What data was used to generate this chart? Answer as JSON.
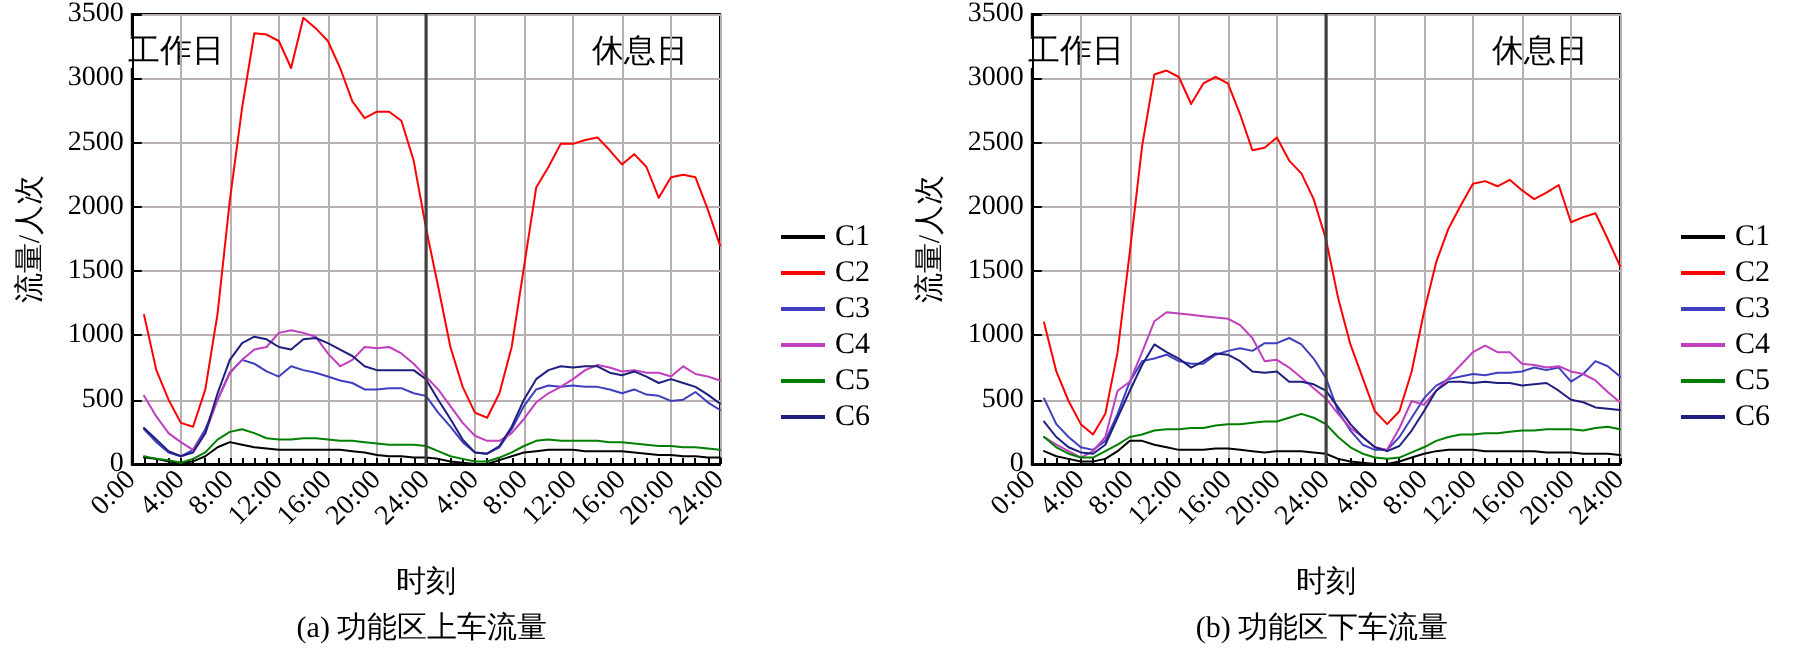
{
  "chart_data": [
    {
      "type": "line",
      "title": "(a) 功能区上车流量",
      "xlabel": "时刻",
      "ylabel": "流量/人次",
      "annotations": [
        "工作日",
        "休息日"
      ],
      "categories": [
        "0:00",
        null,
        null,
        null,
        "4:00",
        null,
        null,
        null,
        "8:00",
        null,
        null,
        null,
        "12:00",
        null,
        null,
        null,
        "16:00",
        null,
        null,
        null,
        "20:00",
        null,
        null,
        null,
        "24:00",
        null,
        null,
        null,
        "4:00",
        null,
        null,
        null,
        "8:00",
        null,
        null,
        null,
        "12:00",
        null,
        null,
        null,
        "16:00",
        null,
        null,
        null,
        "20:00",
        null,
        null,
        null,
        "24:00"
      ],
      "ylim": [
        0,
        3500
      ],
      "yticks": [
        0,
        500,
        1000,
        1500,
        2000,
        2500,
        3000,
        3500
      ],
      "grid": true,
      "legend": "right",
      "line_style": "solid",
      "ref_lines": [
        {
          "axis": "x",
          "value": "24:00",
          "label": null,
          "color": "#404040"
        }
      ],
      "series": [
        {
          "name": "C1",
          "color": "#000000",
          "values": [
            null,
            50,
            40,
            20,
            10,
            20,
            60,
            130,
            170,
            150,
            130,
            120,
            110,
            110,
            110,
            110,
            110,
            110,
            100,
            90,
            70,
            60,
            60,
            50,
            50,
            40,
            20,
            10,
            0,
            0,
            30,
            60,
            90,
            100,
            110,
            110,
            110,
            100,
            100,
            100,
            100,
            90,
            80,
            70,
            70,
            60,
            60,
            50,
            50
          ]
        },
        {
          "name": "C2",
          "color": "#ff0000",
          "values": [
            null,
            1160,
            730,
            500,
            320,
            290,
            580,
            1170,
            2050,
            2770,
            3350,
            3340,
            3290,
            3080,
            3470,
            3390,
            3290,
            3080,
            2820,
            2690,
            2740,
            2740,
            2670,
            2360,
            1840,
            1380,
            910,
            600,
            400,
            360,
            550,
            910,
            1530,
            2150,
            2310,
            2490,
            2490,
            2520,
            2540,
            2440,
            2330,
            2410,
            2310,
            2070,
            2230,
            2250,
            2230,
            1980,
            1700
          ]
        },
        {
          "name": "C3",
          "color": "#3f3fbf",
          "values": [
            null,
            270,
            170,
            90,
            60,
            110,
            270,
            500,
            710,
            810,
            780,
            720,
            680,
            760,
            730,
            710,
            680,
            650,
            630,
            580,
            580,
            590,
            590,
            550,
            530,
            400,
            290,
            170,
            90,
            80,
            130,
            270,
            450,
            580,
            610,
            600,
            610,
            600,
            600,
            580,
            550,
            580,
            540,
            530,
            490,
            500,
            560,
            480,
            420
          ]
        },
        {
          "name": "C4",
          "color": "#bf3fbf",
          "values": [
            null,
            530,
            370,
            240,
            170,
            110,
            240,
            500,
            710,
            810,
            890,
            910,
            1020,
            1040,
            1020,
            990,
            860,
            760,
            810,
            910,
            900,
            910,
            860,
            780,
            680,
            580,
            450,
            320,
            220,
            180,
            180,
            240,
            350,
            480,
            550,
            600,
            660,
            730,
            770,
            750,
            720,
            730,
            710,
            710,
            680,
            760,
            700,
            680,
            650
          ]
        },
        {
          "name": "C5",
          "color": "#007f00",
          "values": [
            null,
            60,
            40,
            30,
            10,
            40,
            90,
            190,
            250,
            270,
            240,
            200,
            190,
            190,
            200,
            200,
            190,
            180,
            180,
            170,
            160,
            150,
            150,
            150,
            140,
            100,
            60,
            40,
            20,
            20,
            50,
            90,
            140,
            180,
            190,
            180,
            180,
            180,
            180,
            170,
            170,
            160,
            150,
            140,
            140,
            130,
            130,
            120,
            110
          ]
        },
        {
          "name": "C6",
          "color": "#1f1f7f",
          "values": [
            null,
            280,
            190,
            100,
            60,
            90,
            240,
            550,
            810,
            940,
            990,
            970,
            910,
            890,
            970,
            980,
            940,
            890,
            840,
            760,
            730,
            730,
            730,
            730,
            660,
            500,
            350,
            190,
            90,
            80,
            140,
            290,
            500,
            660,
            730,
            760,
            750,
            760,
            760,
            710,
            690,
            720,
            680,
            630,
            660,
            630,
            600,
            540,
            470
          ]
        }
      ]
    },
    {
      "type": "line",
      "title": "(b) 功能区下车流量",
      "xlabel": "时刻",
      "ylabel": "流量/人次",
      "annotations": [
        "工作日",
        "休息日"
      ],
      "categories": [
        "0:00",
        null,
        null,
        null,
        "4:00",
        null,
        null,
        null,
        "8:00",
        null,
        null,
        null,
        "12:00",
        null,
        null,
        null,
        "16:00",
        null,
        null,
        null,
        "20:00",
        null,
        null,
        null,
        "24:00",
        null,
        null,
        null,
        "4:00",
        null,
        null,
        null,
        "8:00",
        null,
        null,
        null,
        "12:00",
        null,
        null,
        null,
        "16:00",
        null,
        null,
        null,
        "20:00",
        null,
        null,
        null,
        "24:00"
      ],
      "ylim": [
        0,
        3500
      ],
      "yticks": [
        0,
        500,
        1000,
        1500,
        2000,
        2500,
        3000,
        3500
      ],
      "grid": true,
      "legend": "right",
      "line_style": "solid",
      "ref_lines": [
        {
          "axis": "x",
          "value": "24:00",
          "label": null,
          "color": "#404040"
        }
      ],
      "series": [
        {
          "name": "C1",
          "color": "#000000",
          "values": [
            null,
            100,
            60,
            40,
            20,
            20,
            40,
            100,
            180,
            180,
            150,
            130,
            110,
            110,
            110,
            120,
            120,
            110,
            100,
            90,
            100,
            100,
            100,
            90,
            80,
            40,
            20,
            10,
            0,
            0,
            20,
            50,
            80,
            100,
            110,
            110,
            110,
            100,
            100,
            100,
            100,
            100,
            90,
            90,
            90,
            80,
            80,
            80,
            70
          ]
        },
        {
          "name": "C2",
          "color": "#ff0000",
          "values": [
            null,
            1100,
            720,
            490,
            310,
            230,
            390,
            870,
            1650,
            2470,
            3030,
            3060,
            3010,
            2800,
            2960,
            3010,
            2960,
            2720,
            2440,
            2460,
            2540,
            2360,
            2260,
            2060,
            1750,
            1290,
            930,
            670,
            410,
            310,
            410,
            720,
            1180,
            1570,
            1830,
            2010,
            2180,
            2200,
            2160,
            2210,
            2130,
            2060,
            2110,
            2170,
            1880,
            1920,
            1950,
            1750,
            1540
          ]
        },
        {
          "name": "C3",
          "color": "#3f3fbf",
          "values": [
            null,
            510,
            310,
            210,
            130,
            110,
            180,
            390,
            640,
            800,
            820,
            850,
            800,
            780,
            780,
            850,
            880,
            900,
            880,
            940,
            940,
            980,
            930,
            820,
            670,
            410,
            260,
            150,
            110,
            110,
            210,
            360,
            510,
            610,
            660,
            680,
            700,
            690,
            710,
            710,
            720,
            750,
            730,
            750,
            640,
            700,
            800,
            760,
            680
          ]
        },
        {
          "name": "C4",
          "color": "#bf3fbf",
          "values": [
            null,
            210,
            150,
            100,
            50,
            100,
            210,
            570,
            640,
            870,
            1110,
            1180,
            1170,
            1160,
            1150,
            1140,
            1130,
            1080,
            980,
            800,
            810,
            750,
            670,
            590,
            510,
            390,
            280,
            210,
            130,
            110,
            280,
            490,
            460,
            570,
            670,
            770,
            870,
            920,
            870,
            870,
            780,
            770,
            750,
            760,
            720,
            700,
            650,
            560,
            480
          ]
        },
        {
          "name": "C5",
          "color": "#007f00",
          "values": [
            null,
            210,
            130,
            80,
            50,
            50,
            100,
            150,
            210,
            230,
            260,
            270,
            270,
            280,
            280,
            300,
            310,
            310,
            320,
            330,
            330,
            360,
            390,
            360,
            310,
            210,
            130,
            80,
            50,
            40,
            50,
            90,
            130,
            180,
            210,
            230,
            230,
            240,
            240,
            250,
            260,
            260,
            270,
            270,
            270,
            260,
            280,
            290,
            270
          ]
        },
        {
          "name": "C6",
          "color": "#1f1f7f",
          "values": [
            null,
            330,
            210,
            130,
            90,
            80,
            150,
            360,
            570,
            770,
            930,
            870,
            820,
            750,
            800,
            860,
            850,
            800,
            720,
            710,
            720,
            640,
            640,
            620,
            570,
            440,
            310,
            210,
            130,
            100,
            140,
            260,
            410,
            570,
            640,
            640,
            630,
            640,
            630,
            630,
            610,
            620,
            630,
            570,
            500,
            480,
            440,
            430,
            420
          ]
        }
      ]
    }
  ]
}
